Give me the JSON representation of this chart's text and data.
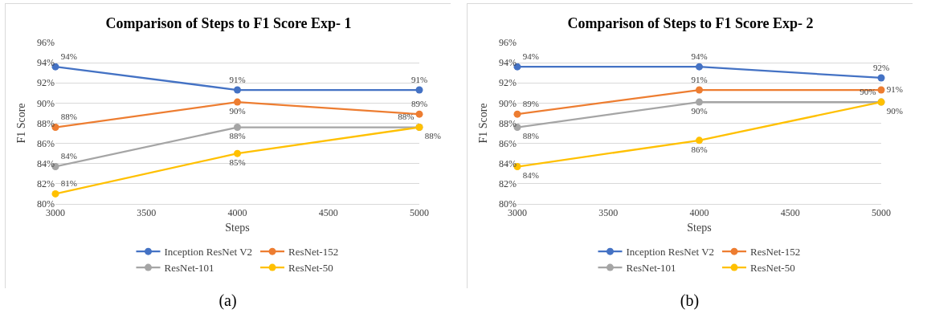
{
  "chart_data": [
    {
      "type": "line",
      "title": "Comparison of Steps to F1 Score Exp- 1",
      "xlabel": "Steps",
      "ylabel": "F1 Score",
      "x": [
        3000,
        4000,
        5000
      ],
      "xlim": [
        3000,
        5000
      ],
      "xticks": [
        3000,
        3500,
        4000,
        4500,
        5000
      ],
      "ylim": [
        80,
        96
      ],
      "yticks": [
        {
          "value": 80,
          "label": "80%"
        },
        {
          "value": 82,
          "label": "82%"
        },
        {
          "value": 84,
          "label": "84%"
        },
        {
          "value": 86,
          "label": "86%"
        },
        {
          "value": 88,
          "label": "88%"
        },
        {
          "value": 90,
          "label": "90%"
        },
        {
          "value": 92,
          "label": "92%"
        },
        {
          "value": 94,
          "label": "94%"
        },
        {
          "value": 96,
          "label": "96%"
        }
      ],
      "grid": "y",
      "legend": "bottom",
      "marker": "circle",
      "line_style": "solid",
      "annotations": [
        "(a)"
      ],
      "series": [
        {
          "name": "Inception ResNet V2",
          "color": "#4472c4",
          "values": [
            93.6,
            91.3,
            91.3
          ],
          "value_labels": [
            "94%",
            "91%",
            "91%"
          ]
        },
        {
          "name": "ResNet-152",
          "color": "#ed7d31",
          "values": [
            87.6,
            90.1,
            88.9
          ],
          "value_labels": [
            "88%",
            "90%",
            "89%"
          ]
        },
        {
          "name": "ResNet-101",
          "color": "#a5a5a5",
          "values": [
            83.7,
            87.6,
            87.6
          ],
          "value_labels": [
            "84%",
            "88%",
            "88%"
          ]
        },
        {
          "name": "ResNet-50",
          "color": "#ffc000",
          "values": [
            81.0,
            85.0,
            87.6
          ],
          "value_labels": [
            "81%",
            "85%",
            "88%"
          ]
        }
      ]
    },
    {
      "type": "line",
      "title": "Comparison of Steps to F1 Score Exp- 2",
      "xlabel": "Steps",
      "ylabel": "F1 Score",
      "x": [
        3000,
        4000,
        5000
      ],
      "xlim": [
        3000,
        5000
      ],
      "xticks": [
        3000,
        3500,
        4000,
        4500,
        5000
      ],
      "ylim": [
        80,
        96
      ],
      "yticks": [
        {
          "value": 80,
          "label": "80%"
        },
        {
          "value": 82,
          "label": "82%"
        },
        {
          "value": 84,
          "label": "84%"
        },
        {
          "value": 86,
          "label": "86%"
        },
        {
          "value": 88,
          "label": "88%"
        },
        {
          "value": 90,
          "label": "90%"
        },
        {
          "value": 92,
          "label": "92%"
        },
        {
          "value": 94,
          "label": "94%"
        },
        {
          "value": 96,
          "label": "96%"
        }
      ],
      "grid": "y",
      "legend": "bottom",
      "marker": "circle",
      "line_style": "solid",
      "annotations": [
        "(b)"
      ],
      "series": [
        {
          "name": "Inception ResNet V2",
          "color": "#4472c4",
          "values": [
            93.6,
            93.6,
            92.5
          ],
          "value_labels": [
            "94%",
            "94%",
            "92%"
          ]
        },
        {
          "name": "ResNet-152",
          "color": "#ed7d31",
          "values": [
            88.9,
            91.3,
            91.3
          ],
          "value_labels": [
            "89%",
            "91%",
            "91%"
          ]
        },
        {
          "name": "ResNet-101",
          "color": "#a5a5a5",
          "values": [
            87.6,
            90.1,
            90.1
          ],
          "value_labels": [
            "88%",
            "90%",
            "90%"
          ]
        },
        {
          "name": "ResNet-50",
          "color": "#ffc000",
          "values": [
            83.7,
            86.3,
            90.1
          ],
          "value_labels": [
            "84%",
            "86%",
            "90%"
          ]
        }
      ]
    }
  ]
}
